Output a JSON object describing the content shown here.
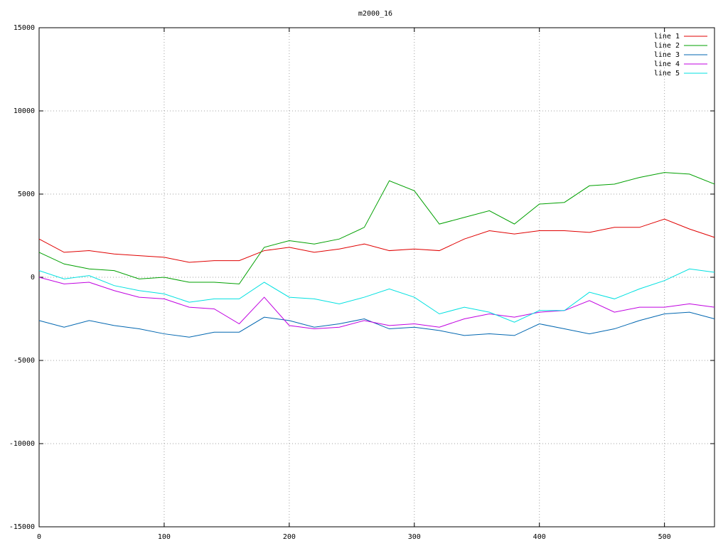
{
  "chart_data": {
    "type": "line",
    "title": "m2000_16",
    "x": [
      0,
      20,
      40,
      60,
      80,
      100,
      120,
      140,
      160,
      180,
      200,
      220,
      240,
      260,
      280,
      300,
      320,
      340,
      360,
      380,
      400,
      420,
      440,
      460,
      480,
      500,
      520,
      540
    ],
    "series": [
      {
        "name": "line 1",
        "color": "#e00000",
        "values": [
          2300,
          1500,
          1600,
          1400,
          1300,
          1200,
          900,
          1000,
          1000,
          1600,
          1800,
          1500,
          1700,
          2000,
          1600,
          1700,
          1600,
          2300,
          2800,
          2600,
          2800,
          2800,
          2700,
          3000,
          3000,
          3500,
          2900,
          2400
        ]
      },
      {
        "name": "line 2",
        "color": "#00a000",
        "values": [
          1500,
          800,
          500,
          400,
          -100,
          0,
          -300,
          -300,
          -400,
          1800,
          2200,
          2000,
          2300,
          3000,
          5800,
          5200,
          3200,
          3600,
          4000,
          3200,
          4400,
          4500,
          5500,
          5600,
          6000,
          6300,
          6200,
          5600
        ]
      },
      {
        "name": "line 3",
        "color": "#0066b0",
        "values": [
          -2600,
          -3000,
          -2600,
          -2900,
          -3100,
          -3400,
          -3600,
          -3300,
          -3300,
          -2400,
          -2600,
          -3000,
          -2800,
          -2500,
          -3100,
          -3000,
          -3200,
          -3500,
          -3400,
          -3500,
          -2800,
          -3100,
          -3400,
          -3100,
          -2600,
          -2200,
          -2100,
          -2500
        ]
      },
      {
        "name": "line 4",
        "color": "#c000e0",
        "values": [
          0,
          -400,
          -300,
          -800,
          -1200,
          -1300,
          -1800,
          -1900,
          -2800,
          -1200,
          -2900,
          -3100,
          -3000,
          -2600,
          -2900,
          -2800,
          -3000,
          -2500,
          -2200,
          -2400,
          -2100,
          -2000,
          -1400,
          -2100,
          -1800,
          -1800,
          -1600,
          -1800
        ]
      },
      {
        "name": "line 5",
        "color": "#00e0e0",
        "values": [
          400,
          -100,
          100,
          -500,
          -800,
          -1000,
          -1500,
          -1300,
          -1300,
          -300,
          -1200,
          -1300,
          -1600,
          -1200,
          -700,
          -1200,
          -2200,
          -1800,
          -2100,
          -2700,
          -2000,
          -2000,
          -900,
          -1300,
          -700,
          -200,
          500,
          300
        ]
      }
    ],
    "xlim": [
      0,
      540
    ],
    "xticks": [
      0,
      100,
      200,
      300,
      400,
      500
    ],
    "ylim": [
      -15000,
      15000
    ],
    "yticks": [
      -15000,
      -10000,
      -5000,
      0,
      5000,
      10000,
      15000
    ],
    "grid": true,
    "legend": "top-right"
  }
}
